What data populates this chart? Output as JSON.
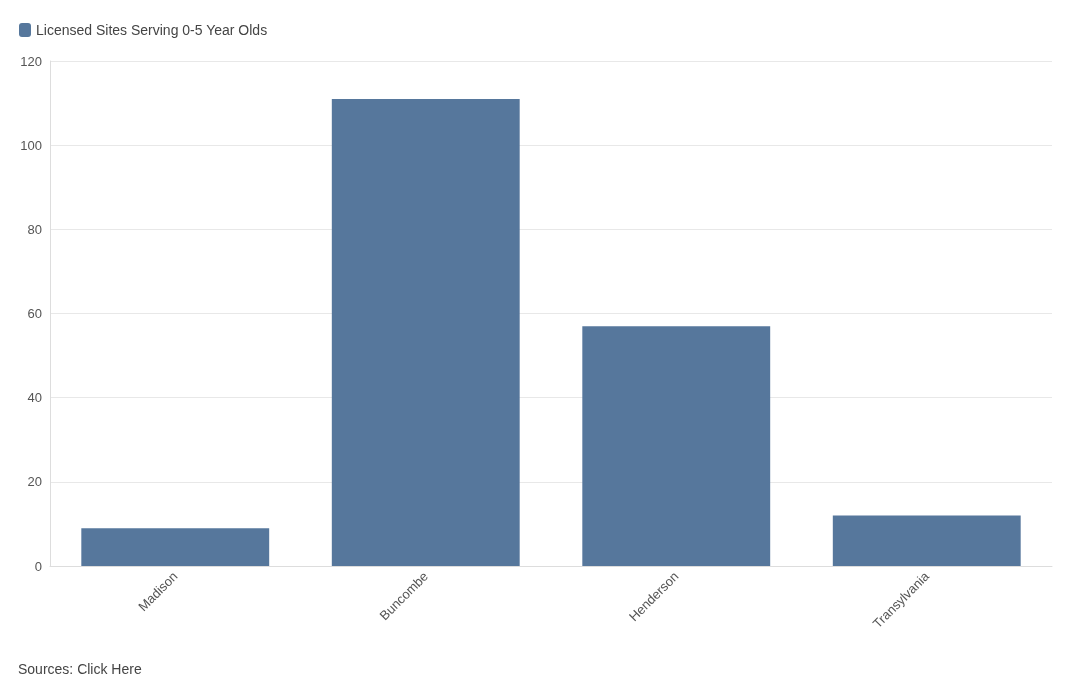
{
  "chart_data": {
    "type": "bar",
    "categories": [
      "Madison",
      "Buncombe",
      "Henderson",
      "Transylvania"
    ],
    "series": [
      {
        "name": "Licensed Sites Serving 0-5 Year Olds",
        "color": "#56779c",
        "values": [
          9,
          111,
          57,
          12
        ]
      }
    ],
    "ylim": [
      0,
      120
    ],
    "yticks": [
      0,
      20,
      40,
      60,
      80,
      100,
      120
    ],
    "grid": "y",
    "legend": "top left",
    "annotations": [
      "Sources: Click Here"
    ]
  }
}
